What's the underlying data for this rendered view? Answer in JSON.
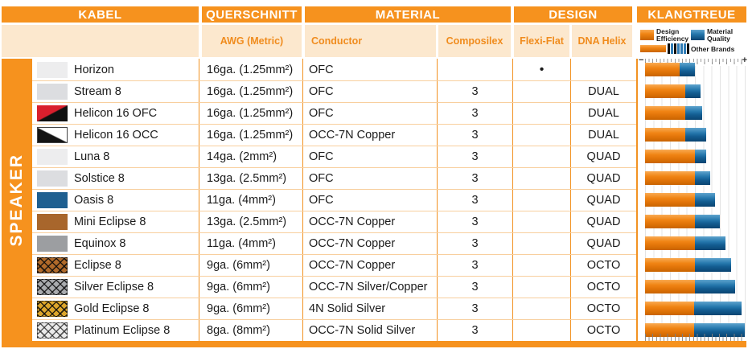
{
  "header": {
    "kabel": "KABEL",
    "querschnitt": "QUERSCHNITT",
    "material": "MATERIAL",
    "design": "DESIGN",
    "klangtreue": "KLANGTREUE"
  },
  "subheader": {
    "awg": "AWG (Metric)",
    "conductor": "Conductor",
    "composilex": "Composilex",
    "flexi_flat": "Flexi-Flat",
    "dna_helix": "DNA Helix"
  },
  "sidebar": {
    "label": "SPEAKER"
  },
  "legend": {
    "design_efficiency": "Design Efficiency",
    "material_quality": "Material Quality",
    "other_brands": "Other Brands",
    "other_brands_ticks": [
      "#111111",
      "#2F7CB6",
      "#111111",
      "#2F7CB6",
      "#2F7CB6",
      "#2F7CB6",
      "#111111"
    ],
    "scale_min": "−",
    "scale_max": "+"
  },
  "colors": {
    "accent_orange": "#F6921E",
    "subheader_bg": "#FCE8CE",
    "bar_orange": "#EE7D15",
    "bar_blue": "#1E6FA7"
  },
  "rows": [
    {
      "name": "Horizon",
      "swatch": "light",
      "awg": "16ga. (1.25mm²)",
      "conductor": "OFC",
      "composilex": "",
      "flexi_flat": "•",
      "dna_helix": "",
      "design_efficiency": 35,
      "material_quality": 15
    },
    {
      "name": "Stream 8",
      "swatch": "lightgray",
      "awg": "16ga. (1.25mm²)",
      "conductor": "OFC",
      "composilex": "3",
      "flexi_flat": "",
      "dna_helix": "DUAL",
      "design_efficiency": 40,
      "material_quality": 16
    },
    {
      "name": "Helicon 16 OFC",
      "swatch": "red-black",
      "awg": "16ga. (1.25mm²)",
      "conductor": "OFC",
      "composilex": "3",
      "flexi_flat": "",
      "dna_helix": "DUAL",
      "design_efficiency": 40,
      "material_quality": 17
    },
    {
      "name": "Helicon 16 OCC",
      "swatch": "white-black",
      "awg": "16ga. (1.25mm²)",
      "conductor": "OCC-7N Copper",
      "composilex": "3",
      "flexi_flat": "",
      "dna_helix": "DUAL",
      "design_efficiency": 40,
      "material_quality": 21
    },
    {
      "name": "Luna 8",
      "swatch": "light",
      "awg": "14ga. (2mm²)",
      "conductor": "OFC",
      "composilex": "3",
      "flexi_flat": "",
      "dna_helix": "QUAD",
      "design_efficiency": 50,
      "material_quality": 11
    },
    {
      "name": "Solstice 8",
      "swatch": "lightgray",
      "awg": "13ga. (2.5mm²)",
      "conductor": "OFC",
      "composilex": "3",
      "flexi_flat": "",
      "dna_helix": "QUAD",
      "design_efficiency": 50,
      "material_quality": 15
    },
    {
      "name": "Oasis 8",
      "swatch": "blue",
      "awg": "11ga. (4mm²)",
      "conductor": "OFC",
      "composilex": "3",
      "flexi_flat": "",
      "dna_helix": "QUAD",
      "design_efficiency": 50,
      "material_quality": 20
    },
    {
      "name": "Mini Eclipse 8",
      "swatch": "brown",
      "awg": "13ga. (2.5mm²)",
      "conductor": "OCC-7N Copper",
      "composilex": "3",
      "flexi_flat": "",
      "dna_helix": "QUAD",
      "design_efficiency": 50,
      "material_quality": 25
    },
    {
      "name": "Equinox 8",
      "swatch": "gray",
      "awg": "11ga. (4mm²)",
      "conductor": "OCC-7N Copper",
      "composilex": "3",
      "flexi_flat": "",
      "dna_helix": "QUAD",
      "design_efficiency": 50,
      "material_quality": 31
    },
    {
      "name": "Eclipse 8",
      "swatch": "hatch-brown",
      "awg": "9ga. (6mm²)",
      "conductor": "OCC-7N Copper",
      "composilex": "3",
      "flexi_flat": "",
      "dna_helix": "OCTO",
      "design_efficiency": 50,
      "material_quality": 36
    },
    {
      "name": "Silver Eclipse 8",
      "swatch": "hatch-silver",
      "awg": "9ga. (6mm²)",
      "conductor": "OCC-7N Silver/Copper",
      "composilex": "3",
      "flexi_flat": "",
      "dna_helix": "OCTO",
      "design_efficiency": 50,
      "material_quality": 40
    },
    {
      "name": "Gold Eclipse 8",
      "swatch": "hatch-gold",
      "awg": "9ga. (6mm²)",
      "conductor": "4N Solid Silver",
      "composilex": "3",
      "flexi_flat": "",
      "dna_helix": "OCTO",
      "design_efficiency": 49,
      "material_quality": 48
    },
    {
      "name": "Platinum Eclipse 8",
      "swatch": "hatch-platinum",
      "awg": "8ga. (8mm²)",
      "conductor": "OCC-7N Solid Silver",
      "composilex": "3",
      "flexi_flat": "",
      "dna_helix": "OCTO",
      "design_efficiency": 49,
      "material_quality": 51
    }
  ],
  "chart_data": {
    "type": "bar",
    "orientation": "horizontal",
    "stacked": true,
    "title": "KLANGTREUE",
    "categories": [
      "Horizon",
      "Stream 8",
      "Helicon 16 OFC",
      "Helicon 16 OCC",
      "Luna 8",
      "Solstice 8",
      "Oasis 8",
      "Mini Eclipse 8",
      "Equinox 8",
      "Eclipse 8",
      "Silver Eclipse 8",
      "Gold Eclipse 8",
      "Platinum Eclipse 8"
    ],
    "series": [
      {
        "name": "Design Efficiency",
        "color": "#EE7D15",
        "values": [
          35,
          40,
          40,
          40,
          50,
          50,
          50,
          50,
          50,
          50,
          50,
          49,
          49
        ]
      },
      {
        "name": "Material Quality",
        "color": "#1E6FA7",
        "values": [
          15,
          16,
          17,
          21,
          11,
          15,
          20,
          25,
          31,
          36,
          40,
          48,
          51
        ]
      }
    ],
    "xlim": [
      0,
      100
    ],
    "axis_end_labels": {
      "min": "−",
      "max": "+"
    },
    "grid": true,
    "legend_position": "top",
    "legend_extra": "Other Brands"
  }
}
